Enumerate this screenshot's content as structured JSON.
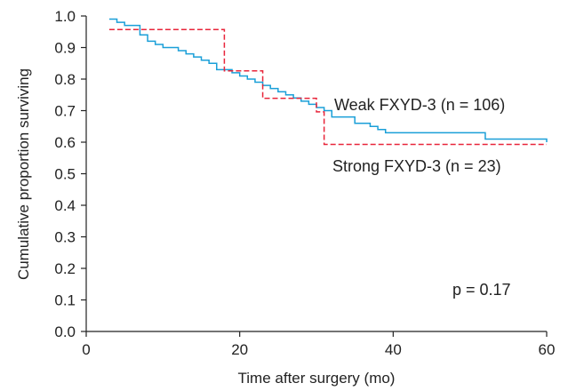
{
  "chart_data": {
    "type": "line",
    "title": "",
    "xlabel": "Time after surgery (mo)",
    "ylabel": "Cumulative proportion surviving",
    "xlim": [
      0,
      60
    ],
    "ylim": [
      0,
      1.0
    ],
    "x_ticks": [
      "0",
      "20",
      "40",
      "60"
    ],
    "y_ticks": [
      "0.0",
      "0.1",
      "0.2",
      "0.3",
      "0.4",
      "0.5",
      "0.6",
      "0.7",
      "0.8",
      "0.9",
      "1.0"
    ],
    "grid": false,
    "annotation": "p = 0.17",
    "series": [
      {
        "name": "Weak FXYD-3 (n = 106)",
        "color": "#1a9fd8",
        "style": "solid-step",
        "x": [
          3,
          4,
          5,
          7,
          8,
          9,
          10,
          12,
          13,
          14,
          15,
          16,
          17,
          19,
          20,
          21,
          22,
          23,
          24,
          25,
          26,
          27,
          28,
          29,
          30,
          31,
          32,
          35,
          37,
          38,
          39,
          52,
          60
        ],
        "y": [
          0.99,
          0.98,
          0.97,
          0.94,
          0.92,
          0.91,
          0.9,
          0.89,
          0.88,
          0.87,
          0.86,
          0.85,
          0.83,
          0.82,
          0.81,
          0.8,
          0.79,
          0.78,
          0.77,
          0.76,
          0.75,
          0.74,
          0.73,
          0.72,
          0.71,
          0.7,
          0.68,
          0.66,
          0.65,
          0.64,
          0.63,
          0.61,
          0.6
        ]
      },
      {
        "name": "Strong FXYD-3 (n = 23)",
        "color": "#e8253a",
        "style": "dashed-step",
        "x": [
          3,
          18,
          23,
          30,
          31,
          60
        ],
        "y": [
          0.957,
          0.826,
          0.739,
          0.696,
          0.593,
          0.593
        ]
      }
    ]
  }
}
